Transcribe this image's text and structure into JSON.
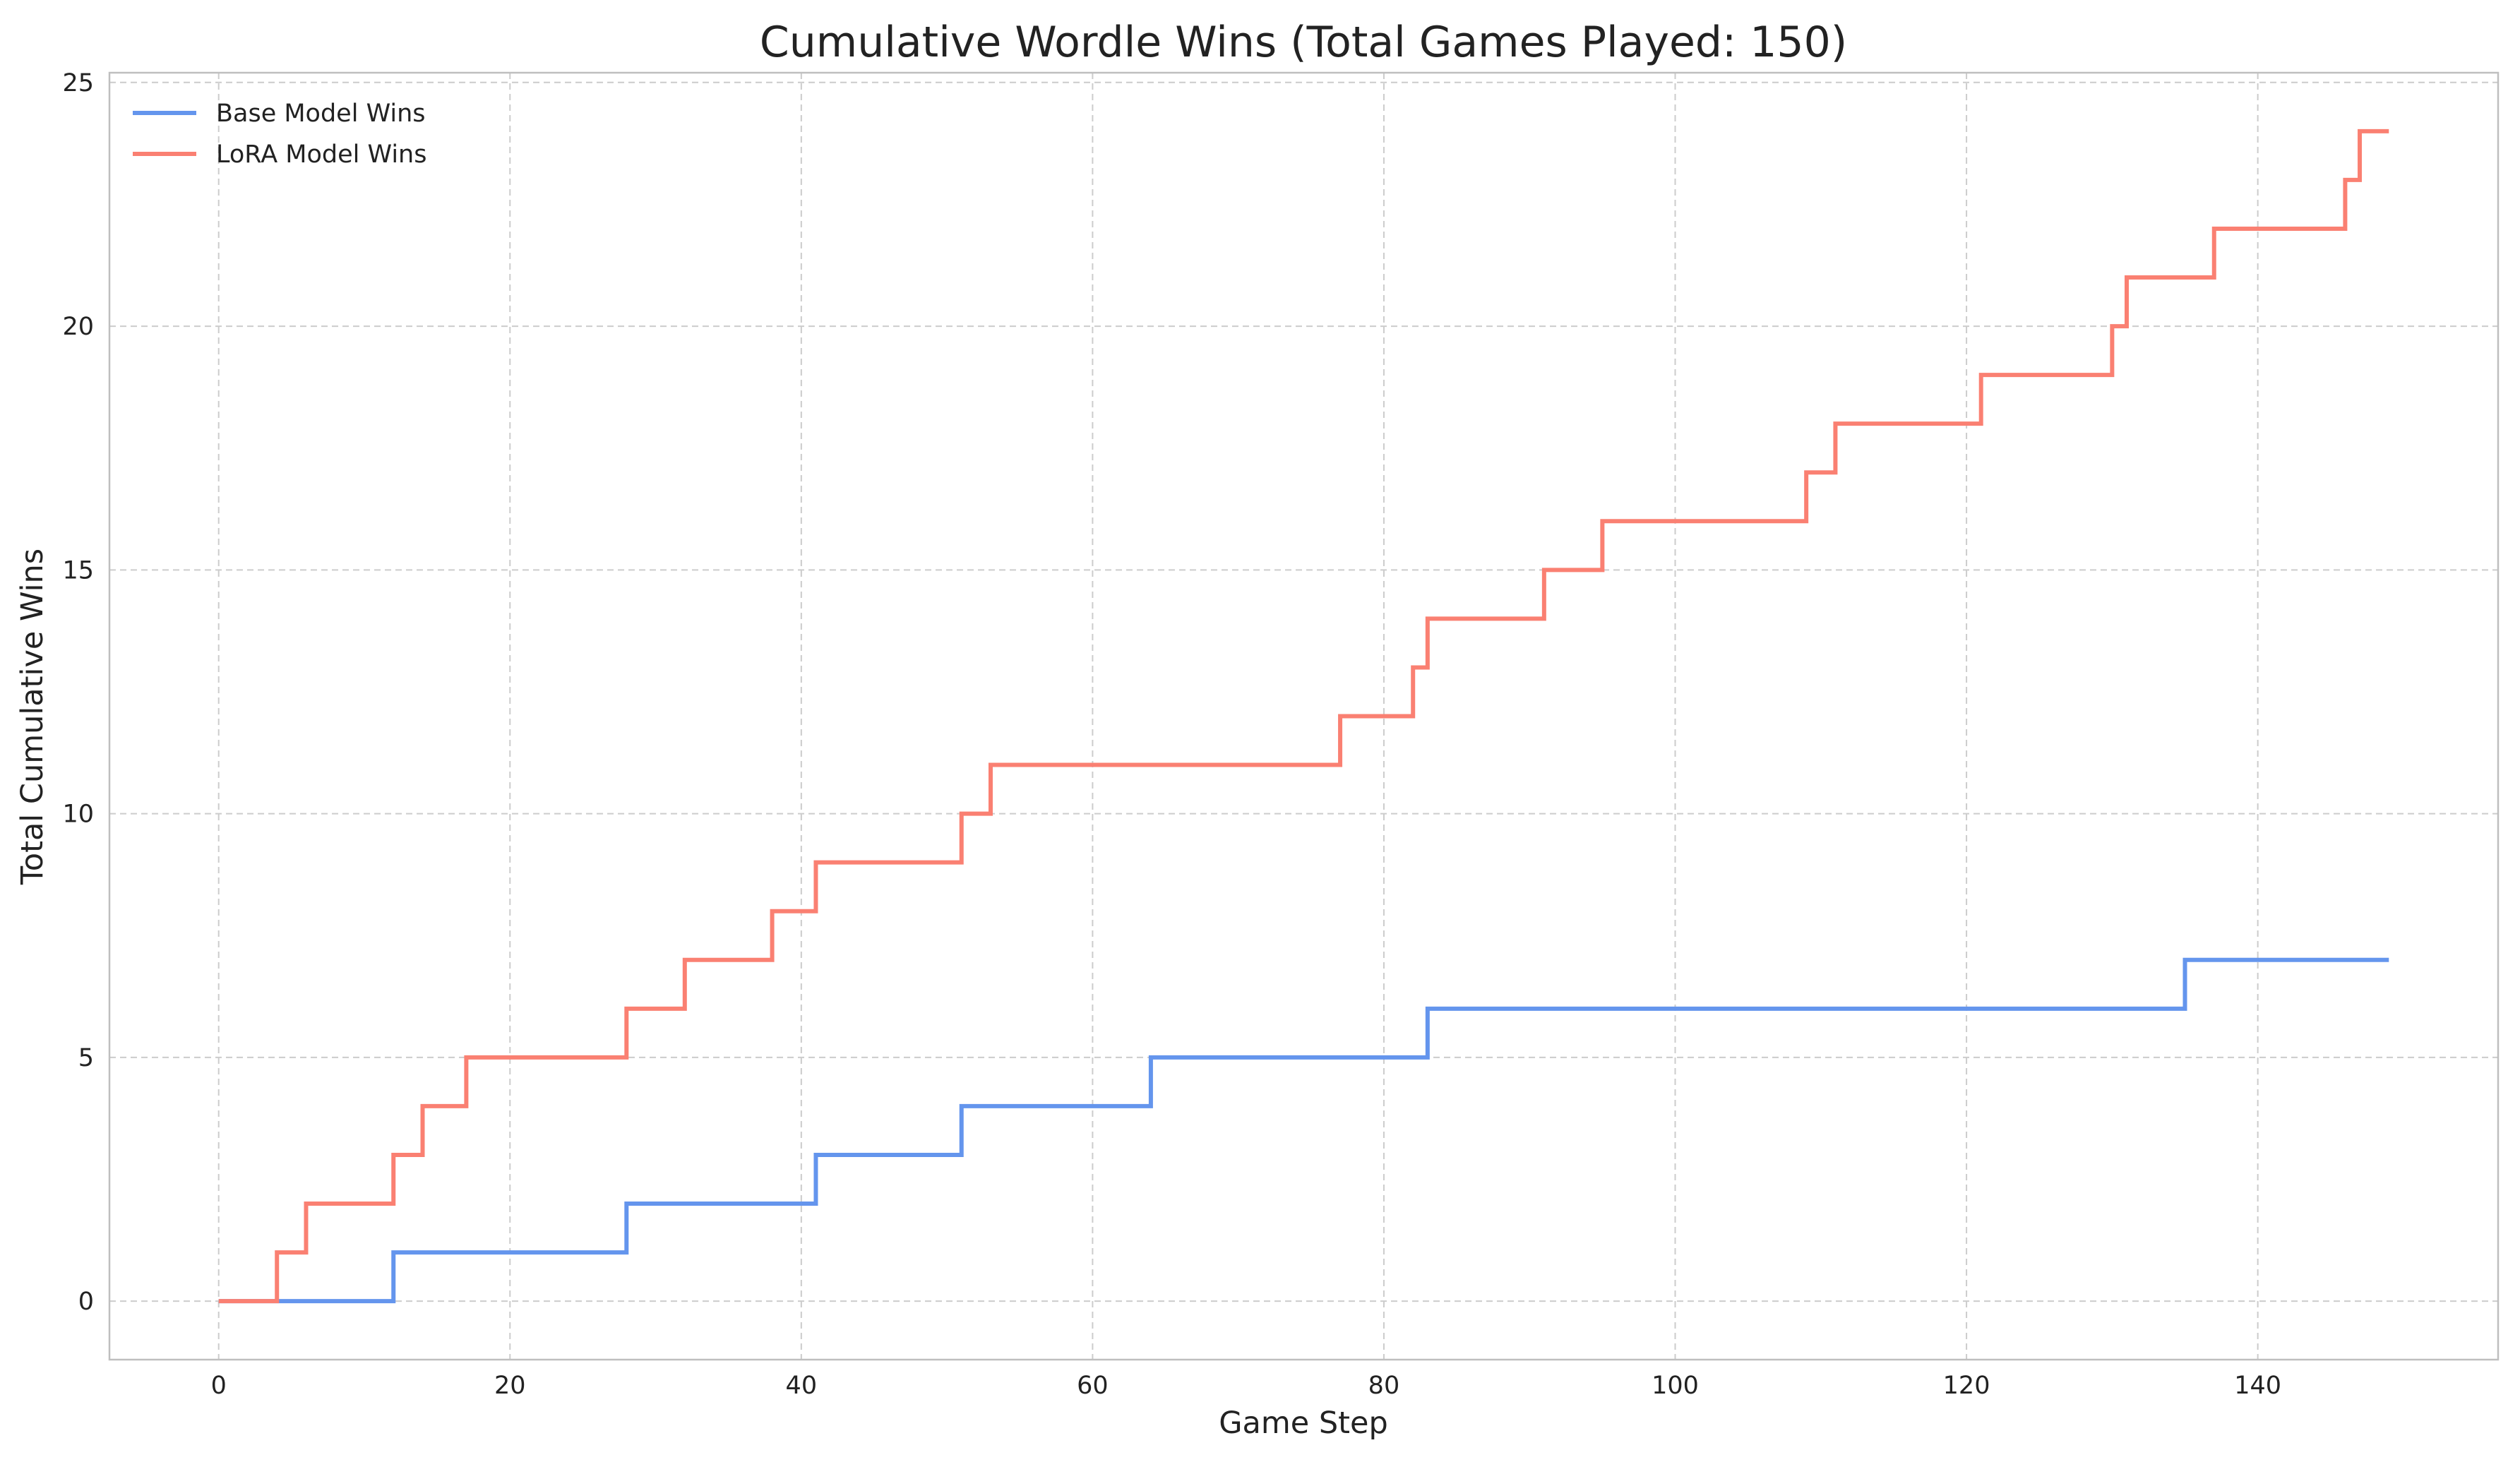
{
  "chart_data": {
    "type": "line",
    "step": "post",
    "title": "Cumulative Wordle Wins (Total Games Played: 150)",
    "xlabel": "Game Step",
    "ylabel": "Total Cumulative Wins",
    "xlim": [
      -7.5,
      156.5
    ],
    "ylim": [
      -1.2,
      25.2
    ],
    "xticks": [
      0,
      20,
      40,
      60,
      80,
      100,
      120,
      140
    ],
    "yticks": [
      0,
      5,
      10,
      15,
      20,
      25
    ],
    "grid": true,
    "legend_position": "top-left",
    "series": [
      {
        "name": "Base Model Wins",
        "color": "#6495ED",
        "x": [
          0,
          12,
          28,
          41,
          51,
          64,
          83,
          135,
          149
        ],
        "y": [
          0,
          1,
          2,
          3,
          4,
          5,
          6,
          7,
          7
        ]
      },
      {
        "name": "LoRA Model Wins",
        "color": "#FA8072",
        "x": [
          0,
          4,
          6,
          12,
          14,
          17,
          28,
          32,
          38,
          41,
          51,
          53,
          77,
          82,
          83,
          91,
          95,
          109,
          111,
          121,
          130,
          131,
          137,
          146,
          147,
          149
        ],
        "y": [
          0,
          1,
          2,
          3,
          4,
          5,
          6,
          7,
          8,
          9,
          10,
          11,
          12,
          13,
          14,
          15,
          16,
          17,
          18,
          19,
          20,
          21,
          22,
          23,
          24,
          24
        ]
      }
    ]
  }
}
